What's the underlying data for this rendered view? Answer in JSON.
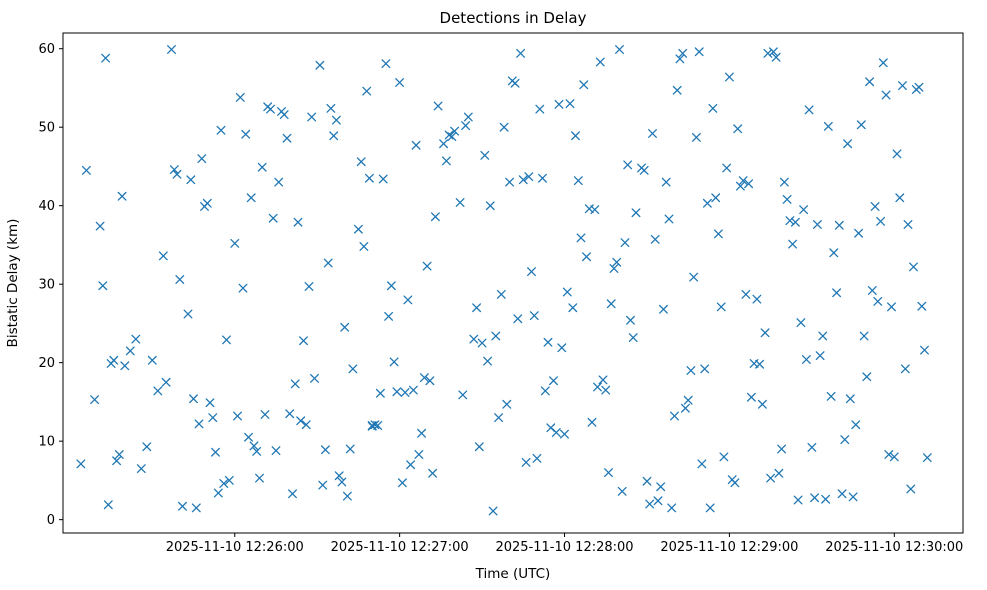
{
  "chart_data": {
    "type": "scatter",
    "title": "Detections in Delay",
    "xlabel": "Time (UTC)",
    "ylabel": "Bistatic Delay (km)",
    "marker": "x",
    "marker_color": "#1f77b4",
    "grid": false,
    "legend": null,
    "x_base_time": "2025-11-10 12:25:00",
    "x_unit": "seconds_after_base_time",
    "xlim_seconds": [
      -2.5,
      325
    ],
    "ylim": [
      -1.7,
      62.0
    ],
    "x_tick_seconds": [
      60,
      120,
      180,
      240,
      300
    ],
    "x_tick_labels": [
      "2025-11-10 12:26:00",
      "2025-11-10 12:27:00",
      "2025-11-10 12:28:00",
      "2025-11-10 12:29:00",
      "2025-11-10 12:30:00"
    ],
    "y_ticks": [
      0,
      10,
      20,
      30,
      40,
      50,
      60
    ],
    "points": [
      [
        4,
        7.1
      ],
      [
        6,
        44.5
      ],
      [
        9,
        15.3
      ],
      [
        11,
        37.4
      ],
      [
        12,
        29.8
      ],
      [
        13,
        58.8
      ],
      [
        14,
        1.9
      ],
      [
        15,
        19.9
      ],
      [
        16,
        20.3
      ],
      [
        17,
        7.5
      ],
      [
        18,
        8.3
      ],
      [
        19,
        41.2
      ],
      [
        20,
        19.6
      ],
      [
        22,
        21.5
      ],
      [
        24,
        23.0
      ],
      [
        26,
        6.5
      ],
      [
        28,
        9.3
      ],
      [
        30,
        20.3
      ],
      [
        32,
        16.4
      ],
      [
        34,
        33.6
      ],
      [
        35,
        17.5
      ],
      [
        37,
        59.9
      ],
      [
        38,
        44.6
      ],
      [
        39,
        44.0
      ],
      [
        40,
        30.6
      ],
      [
        41,
        1.7
      ],
      [
        43,
        26.2
      ],
      [
        44,
        43.3
      ],
      [
        45,
        15.4
      ],
      [
        46,
        1.5
      ],
      [
        47,
        12.2
      ],
      [
        48,
        46.0
      ],
      [
        49,
        39.9
      ],
      [
        50,
        40.3
      ],
      [
        51,
        14.9
      ],
      [
        52,
        13.0
      ],
      [
        53,
        8.6
      ],
      [
        54,
        3.4
      ],
      [
        55,
        49.6
      ],
      [
        56,
        4.6
      ],
      [
        57,
        22.9
      ],
      [
        58,
        5.0
      ],
      [
        60,
        35.2
      ],
      [
        61,
        13.2
      ],
      [
        62,
        53.8
      ],
      [
        63,
        29.5
      ],
      [
        64,
        49.1
      ],
      [
        65,
        10.5
      ],
      [
        66,
        41.0
      ],
      [
        67,
        9.4
      ],
      [
        68,
        8.7
      ],
      [
        69,
        5.3
      ],
      [
        70,
        44.9
      ],
      [
        71,
        13.4
      ],
      [
        72,
        52.6
      ],
      [
        73,
        52.3
      ],
      [
        74,
        38.4
      ],
      [
        75,
        8.8
      ],
      [
        76,
        43.0
      ],
      [
        77,
        52.0
      ],
      [
        78,
        51.6
      ],
      [
        79,
        48.6
      ],
      [
        80,
        13.5
      ],
      [
        81,
        3.3
      ],
      [
        82,
        17.3
      ],
      [
        83,
        37.9
      ],
      [
        84,
        12.6
      ],
      [
        85,
        22.8
      ],
      [
        86,
        12.1
      ],
      [
        87,
        29.7
      ],
      [
        88,
        51.3
      ],
      [
        89,
        18.0
      ],
      [
        91,
        57.9
      ],
      [
        92,
        4.4
      ],
      [
        93,
        8.9
      ],
      [
        94,
        32.7
      ],
      [
        95,
        52.4
      ],
      [
        96,
        48.9
      ],
      [
        97,
        50.9
      ],
      [
        98,
        5.6
      ],
      [
        99,
        4.8
      ],
      [
        100,
        24.5
      ],
      [
        101,
        3.0
      ],
      [
        102,
        9.0
      ],
      [
        103,
        19.2
      ],
      [
        105,
        37.0
      ],
      [
        106,
        45.6
      ],
      [
        107,
        34.8
      ],
      [
        108,
        54.6
      ],
      [
        109,
        43.5
      ],
      [
        110,
        12.0
      ],
      [
        110,
        11.9
      ],
      [
        111,
        12.1
      ],
      [
        112,
        12.0
      ],
      [
        113,
        16.1
      ],
      [
        114,
        43.4
      ],
      [
        115,
        58.1
      ],
      [
        116,
        25.9
      ],
      [
        117,
        29.8
      ],
      [
        118,
        20.1
      ],
      [
        119,
        16.3
      ],
      [
        120,
        55.7
      ],
      [
        121,
        4.7
      ],
      [
        122,
        16.2
      ],
      [
        123,
        28.0
      ],
      [
        124,
        7.0
      ],
      [
        125,
        16.5
      ],
      [
        126,
        47.7
      ],
      [
        127,
        8.3
      ],
      [
        128,
        11.0
      ],
      [
        129,
        18.1
      ],
      [
        130,
        32.3
      ],
      [
        131,
        17.7
      ],
      [
        132,
        5.9
      ],
      [
        133,
        38.6
      ],
      [
        134,
        52.7
      ],
      [
        136,
        47.9
      ],
      [
        137,
        45.7
      ],
      [
        138,
        49.0
      ],
      [
        139,
        48.8
      ],
      [
        140,
        49.5
      ],
      [
        142,
        40.4
      ],
      [
        143,
        15.9
      ],
      [
        144,
        50.2
      ],
      [
        145,
        51.3
      ],
      [
        147,
        23.0
      ],
      [
        148,
        27.0
      ],
      [
        149,
        9.3
      ],
      [
        150,
        22.5
      ],
      [
        151,
        46.4
      ],
      [
        152,
        20.2
      ],
      [
        153,
        40.0
      ],
      [
        154,
        1.1
      ],
      [
        155,
        23.4
      ],
      [
        156,
        13.0
      ],
      [
        157,
        28.7
      ],
      [
        158,
        50.0
      ],
      [
        159,
        14.7
      ],
      [
        160,
        43.0
      ],
      [
        161,
        55.9
      ],
      [
        162,
        55.6
      ],
      [
        163,
        25.6
      ],
      [
        164,
        59.4
      ],
      [
        165,
        43.3
      ],
      [
        166,
        7.3
      ],
      [
        167,
        43.7
      ],
      [
        168,
        31.6
      ],
      [
        169,
        26.0
      ],
      [
        170,
        7.8
      ],
      [
        171,
        52.3
      ],
      [
        172,
        43.5
      ],
      [
        173,
        16.4
      ],
      [
        174,
        22.6
      ],
      [
        175,
        11.7
      ],
      [
        176,
        17.7
      ],
      [
        177,
        11.1
      ],
      [
        178,
        52.9
      ],
      [
        179,
        21.9
      ],
      [
        180,
        10.9
      ],
      [
        181,
        29.0
      ],
      [
        182,
        53.0
      ],
      [
        183,
        27.0
      ],
      [
        184,
        48.9
      ],
      [
        185,
        43.2
      ],
      [
        186,
        35.9
      ],
      [
        187,
        55.4
      ],
      [
        188,
        33.5
      ],
      [
        189,
        39.6
      ],
      [
        190,
        12.4
      ],
      [
        191,
        39.5
      ],
      [
        192,
        16.9
      ],
      [
        193,
        58.3
      ],
      [
        194,
        17.8
      ],
      [
        195,
        16.5
      ],
      [
        196,
        6.0
      ],
      [
        197,
        27.5
      ],
      [
        198,
        32.0
      ],
      [
        199,
        32.8
      ],
      [
        200,
        59.9
      ],
      [
        201,
        3.6
      ],
      [
        202,
        35.3
      ],
      [
        203,
        45.2
      ],
      [
        204,
        25.4
      ],
      [
        205,
        23.2
      ],
      [
        206,
        39.1
      ],
      [
        208,
        44.8
      ],
      [
        209,
        44.5
      ],
      [
        210,
        4.9
      ],
      [
        211,
        2.0
      ],
      [
        212,
        49.2
      ],
      [
        213,
        35.7
      ],
      [
        214,
        2.4
      ],
      [
        215,
        4.2
      ],
      [
        216,
        26.8
      ],
      [
        217,
        43.0
      ],
      [
        218,
        38.3
      ],
      [
        219,
        1.5
      ],
      [
        220,
        13.2
      ],
      [
        221,
        54.7
      ],
      [
        222,
        58.7
      ],
      [
        223,
        59.4
      ],
      [
        224,
        14.2
      ],
      [
        225,
        15.2
      ],
      [
        226,
        19.0
      ],
      [
        227,
        30.9
      ],
      [
        228,
        48.7
      ],
      [
        229,
        59.6
      ],
      [
        230,
        7.1
      ],
      [
        231,
        19.2
      ],
      [
        232,
        40.3
      ],
      [
        233,
        1.5
      ],
      [
        234,
        52.4
      ],
      [
        235,
        41.0
      ],
      [
        236,
        36.4
      ],
      [
        237,
        27.1
      ],
      [
        238,
        8.0
      ],
      [
        239,
        44.8
      ],
      [
        240,
        56.4
      ],
      [
        241,
        5.1
      ],
      [
        242,
        4.7
      ],
      [
        243,
        49.8
      ],
      [
        244,
        42.5
      ],
      [
        245,
        43.2
      ],
      [
        246,
        28.7
      ],
      [
        247,
        42.8
      ],
      [
        248,
        15.6
      ],
      [
        249,
        19.9
      ],
      [
        250,
        28.1
      ],
      [
        251,
        19.8
      ],
      [
        252,
        14.7
      ],
      [
        253,
        23.8
      ],
      [
        254,
        59.4
      ],
      [
        255,
        5.3
      ],
      [
        256,
        59.6
      ],
      [
        257,
        58.9
      ],
      [
        258,
        5.9
      ],
      [
        259,
        9.0
      ],
      [
        260,
        43.0
      ],
      [
        261,
        40.8
      ],
      [
        262,
        38.1
      ],
      [
        263,
        35.1
      ],
      [
        264,
        37.9
      ],
      [
        265,
        2.5
      ],
      [
        266,
        25.1
      ],
      [
        267,
        39.5
      ],
      [
        268,
        20.4
      ],
      [
        269,
        52.2
      ],
      [
        270,
        9.2
      ],
      [
        271,
        2.8
      ],
      [
        272,
        37.6
      ],
      [
        273,
        20.9
      ],
      [
        274,
        23.4
      ],
      [
        275,
        2.6
      ],
      [
        276,
        50.1
      ],
      [
        277,
        15.7
      ],
      [
        278,
        34.0
      ],
      [
        279,
        28.9
      ],
      [
        280,
        37.5
      ],
      [
        281,
        3.3
      ],
      [
        282,
        10.2
      ],
      [
        283,
        47.9
      ],
      [
        284,
        15.4
      ],
      [
        285,
        2.9
      ],
      [
        286,
        12.1
      ],
      [
        287,
        36.5
      ],
      [
        288,
        50.3
      ],
      [
        289,
        23.4
      ],
      [
        290,
        18.2
      ],
      [
        291,
        55.8
      ],
      [
        292,
        29.2
      ],
      [
        293,
        39.9
      ],
      [
        294,
        27.8
      ],
      [
        295,
        38.0
      ],
      [
        296,
        58.2
      ],
      [
        297,
        54.1
      ],
      [
        298,
        8.3
      ],
      [
        299,
        27.1
      ],
      [
        300,
        8.0
      ],
      [
        301,
        46.6
      ],
      [
        302,
        41.0
      ],
      [
        303,
        55.3
      ],
      [
        304,
        19.2
      ],
      [
        305,
        37.6
      ],
      [
        306,
        3.9
      ],
      [
        307,
        32.2
      ],
      [
        308,
        54.8
      ],
      [
        309,
        55.1
      ],
      [
        310,
        27.2
      ],
      [
        311,
        21.6
      ],
      [
        312,
        7.9
      ]
    ]
  }
}
